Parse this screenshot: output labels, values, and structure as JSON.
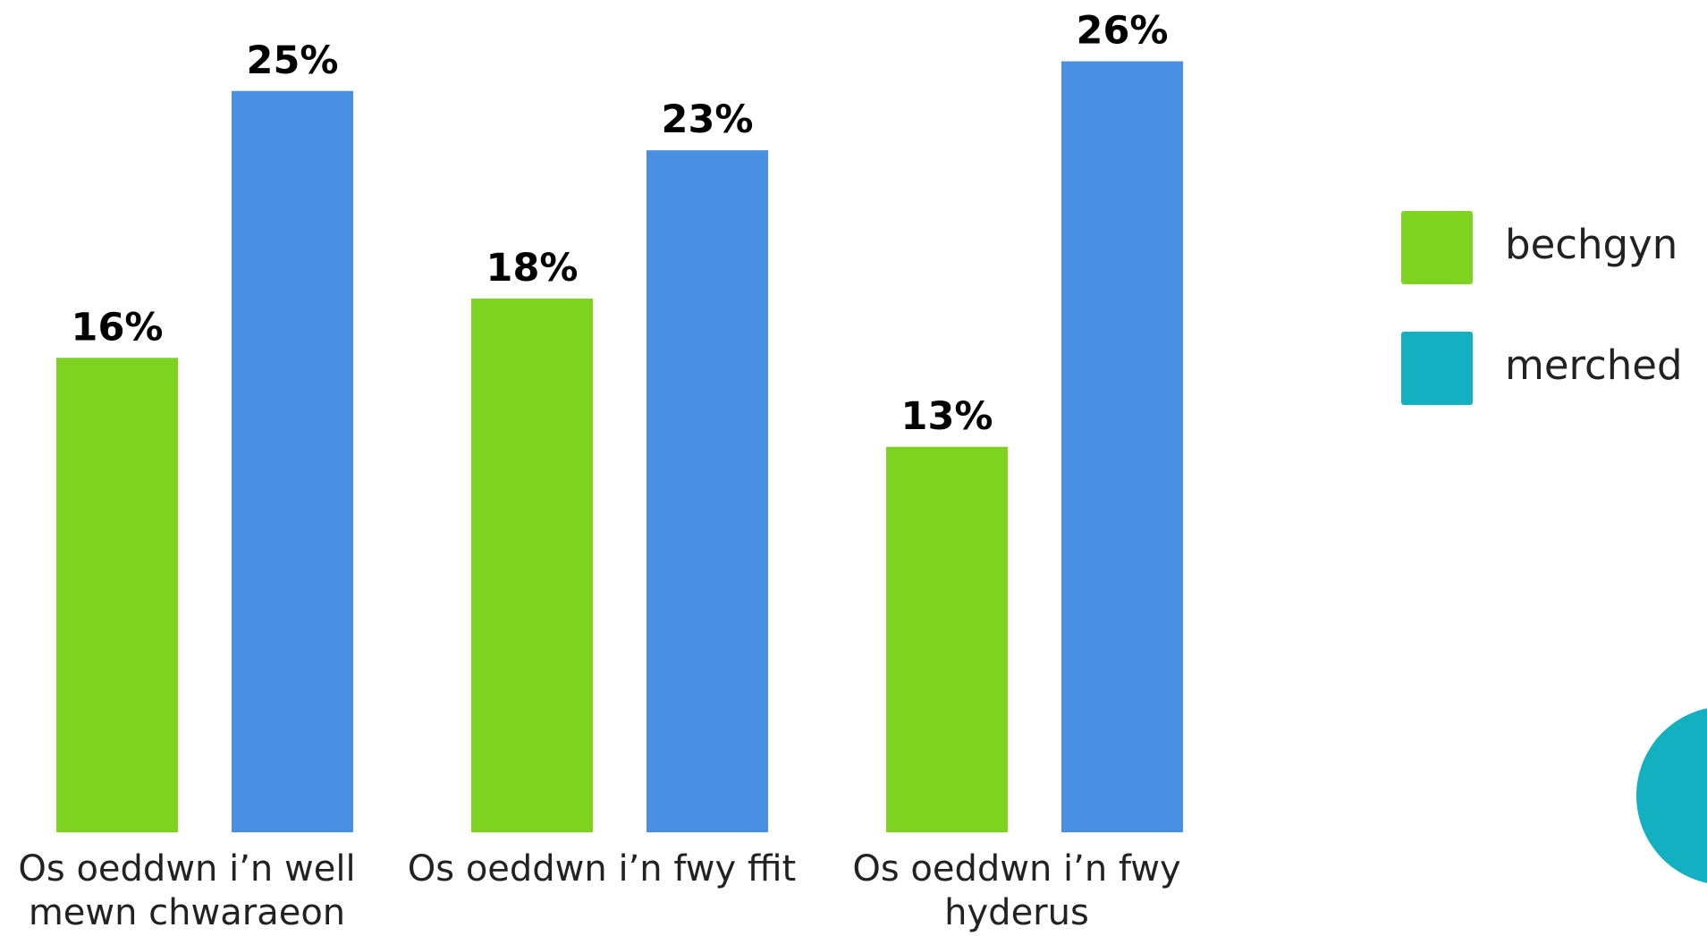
{
  "chart_data": {
    "type": "bar",
    "categories": [
      "Os oeddwn i’n well mewn chwaraeon",
      "Os oeddwn i’n fwy ffit",
      "Os oeddwn i’n fwy hyderus"
    ],
    "series": [
      {
        "name": "bechgyn",
        "color": "#7ed321",
        "values": [
          16,
          18,
          13
        ],
        "value_labels": [
          "16%",
          "18%",
          "13%"
        ]
      },
      {
        "name": "merched",
        "color": "#4a90e2",
        "legend_color": "#12b0c0",
        "values": [
          25,
          23,
          26
        ],
        "value_labels": [
          "25%",
          "23%",
          "26%"
        ]
      }
    ],
    "legend": "right"
  }
}
